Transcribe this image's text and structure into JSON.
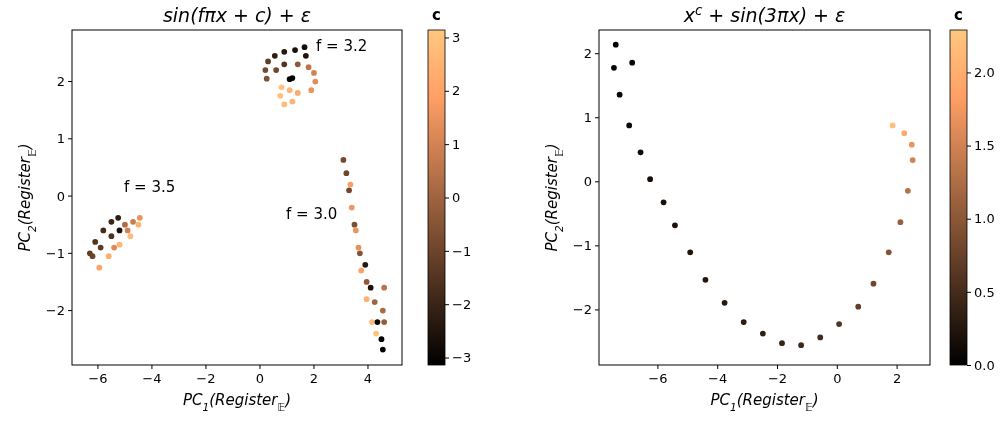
{
  "chart_data": [
    {
      "type": "scatter",
      "title": "sin(fπx + c) + ε",
      "xlabel": "PC$_{1}$(Register$_{𝔼}$)",
      "ylabel": "PC$_{2}$(Register$_{𝔼}$)",
      "clabel": "c",
      "xlim": [
        -6.96,
        5.26
      ],
      "ylim": [
        -2.95,
        2.9
      ],
      "xticks": [
        -6,
        -4,
        -2,
        0,
        2,
        4
      ],
      "yticks": [
        -2,
        -1,
        0,
        1,
        2
      ],
      "clim": [
        -3.14,
        3.14
      ],
      "cticks": [
        -3,
        -2,
        -1,
        0,
        1,
        2,
        3
      ],
      "grid": false,
      "marker": "circle",
      "annotations": [
        "f = 3.2",
        "f = 3.5",
        "f = 3.0"
      ],
      "x": [
        0.55,
        0.9,
        1.3,
        1.65,
        1.7,
        0.3,
        0.2,
        0.25,
        0.6,
        0.9,
        1.4,
        1.8,
        2.0,
        2.05,
        1.9,
        1.1,
        1.2,
        0.8,
        0.75,
        0.9,
        1.2,
        1.4,
        1.1,
        -6.3,
        -6.1,
        -5.8,
        -5.5,
        -5.25,
        -5.9,
        -5.5,
        -6.2,
        -5.2,
        -5.0,
        -4.7,
        -4.45,
        -4.5,
        -4.8,
        -5.2,
        -5.6,
        -5.95,
        -5.4,
        -4.9,
        3.09,
        3.2,
        3.3,
        3.5,
        3.7,
        3.95,
        4.25,
        4.55,
        4.6,
        3.35,
        3.4,
        3.55,
        3.65,
        3.75,
        3.95,
        4.15,
        4.3,
        3.9,
        4.1,
        4.35,
        4.5,
        4.55,
        4.6
      ],
      "values": [
        2.45,
        2.52,
        2.55,
        2.6,
        2.45,
        2.35,
        2.2,
        2.05,
        2.2,
        2.3,
        2.3,
        2.25,
        2.15,
        2.0,
        1.85,
        2.04,
        2.06,
        1.9,
        1.75,
        1.6,
        1.65,
        1.8,
        1.85,
        -1.0,
        -0.8,
        -0.6,
        -0.45,
        -0.38,
        -0.9,
        -0.7,
        -1.05,
        -0.6,
        -0.5,
        -0.45,
        -0.38,
        -0.5,
        -0.7,
        -0.85,
        -1.05,
        -1.25,
        -0.9,
        -0.6,
        0.63,
        0.4,
        0.1,
        -0.5,
        -1.0,
        -1.5,
        -1.85,
        -2.0,
        -2.2,
        0.2,
        -0.2,
        -0.6,
        -0.9,
        -1.3,
        -1.8,
        -2.2,
        -2.4,
        -1.2,
        -1.6,
        -2.2,
        -2.5,
        -2.68,
        -1.6
      ],
      "cvalues": [
        -2.2,
        -2.4,
        -2.6,
        -2.7,
        -2.5,
        -1.2,
        -0.8,
        -0.6,
        -0.9,
        -1.5,
        -0.3,
        0.6,
        1.0,
        1.3,
        1.5,
        -3.0,
        -3.1,
        3.0,
        2.9,
        2.8,
        2.5,
        2.2,
        2.6,
        -1.2,
        -1.5,
        -1.8,
        -2.0,
        -2.2,
        -1.3,
        -1.6,
        -1.0,
        -2.6,
        0.3,
        0.8,
        1.5,
        2.5,
        2.8,
        2.6,
        2.3,
        2.0,
        1.2,
        1.0,
        -0.8,
        -1.0,
        -0.9,
        -0.7,
        -0.5,
        -0.3,
        0.0,
        0.2,
        -0.2,
        1.8,
        1.6,
        1.5,
        1.4,
        1.9,
        2.4,
        2.8,
        3.0,
        -2.4,
        -2.6,
        -2.9,
        -3.1,
        -3.0,
        0.5
      ]
    },
    {
      "type": "scatter",
      "title": "x$^{c}$ + sin(3πx) + ε",
      "xlabel": "PC$_{1}$(Register$_{𝔼}$)",
      "ylabel": "PC$_{2}$(Register$_{𝔼}$)",
      "clabel": "c",
      "xlim": [
        -7.97,
        3.1
      ],
      "ylim": [
        -2.86,
        2.37
      ],
      "xticks": [
        -6,
        -4,
        -2,
        0,
        2
      ],
      "yticks": [
        -2,
        -1,
        0,
        1,
        2
      ],
      "clim": [
        0,
        2.29
      ],
      "cticks": [
        {
          "value": 0,
          "label": "0.0"
        },
        {
          "value": 0.5,
          "label": "0.5"
        },
        {
          "value": 1,
          "label": "1.0"
        },
        {
          "value": 1.5,
          "label": "1.5"
        },
        {
          "value": 2,
          "label": "2.0"
        }
      ],
      "grid": false,
      "marker": "circle",
      "x": [
        -7.41,
        -7.47,
        -7.28,
        -6.96,
        -6.58,
        -6.26,
        -5.81,
        -5.43,
        -4.92,
        -4.41,
        -3.77,
        -3.13,
        -2.49,
        -1.85,
        -1.21,
        -0.57,
        0.06,
        0.7,
        1.21,
        1.72,
        2.11,
        2.36,
        2.52,
        2.49,
        2.24,
        1.85,
        -6.86
      ],
      "values": [
        2.14,
        1.78,
        1.36,
        0.88,
        0.46,
        0.04,
        -0.32,
        -0.68,
        -1.1,
        -1.53,
        -1.89,
        -2.19,
        -2.37,
        -2.52,
        -2.55,
        -2.43,
        -2.22,
        -1.95,
        -1.59,
        -1.1,
        -0.63,
        -0.14,
        0.34,
        0.58,
        0.76,
        0.88,
        1.86
      ],
      "cvalues": [
        0.02,
        0.05,
        0.08,
        0.1,
        0.12,
        0.15,
        0.18,
        0.2,
        0.22,
        0.25,
        0.28,
        0.3,
        0.35,
        0.4,
        0.45,
        0.5,
        0.6,
        0.7,
        0.8,
        0.95,
        1.1,
        1.3,
        1.5,
        1.7,
        1.95,
        2.2,
        0.05
      ]
    }
  ]
}
